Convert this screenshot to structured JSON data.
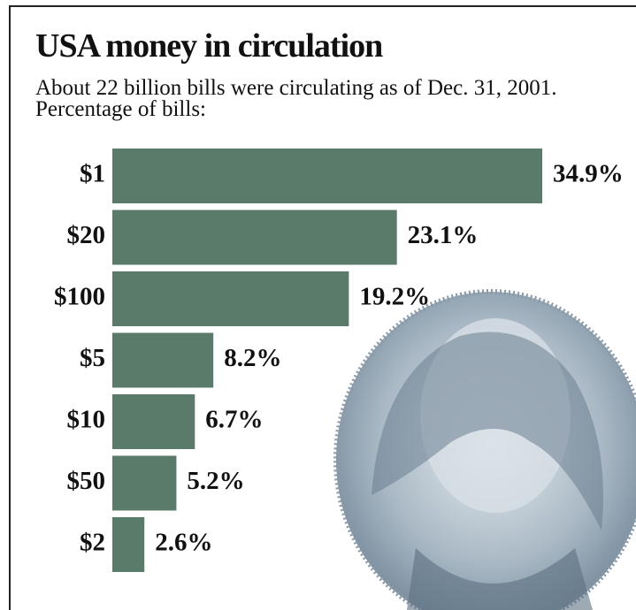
{
  "chart_data": {
    "type": "bar",
    "orientation": "horizontal",
    "title": "USA money in circulation",
    "subtitle": "About 22 billion bills were circulating as of Dec. 31, 2001. Percentage of bills:",
    "categories": [
      "$1",
      "$20",
      "$100",
      "$5",
      "$10",
      "$50",
      "$2"
    ],
    "values": [
      34.9,
      23.1,
      19.2,
      8.2,
      6.7,
      5.2,
      2.6
    ],
    "value_labels": [
      "34.9%",
      "23.1%",
      "19.2%",
      "8.2%",
      "6.7%",
      "5.2%",
      "2.6%"
    ],
    "color": "#5b7b6a"
  }
}
